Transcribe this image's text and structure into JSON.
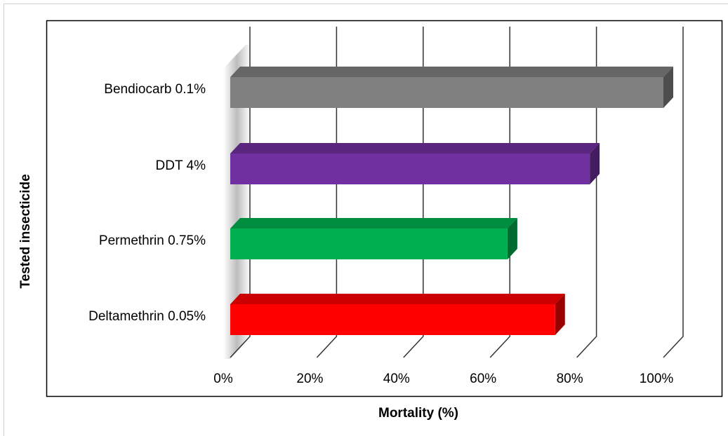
{
  "chart_data": {
    "type": "bar3d-horizontal",
    "x_label": "Mortality (%)",
    "y_label": "Tested insecticide",
    "categories": [
      "Bendiocarb 0.1%",
      "DDT 4%",
      "Permethrin 0.75%",
      "Deltamethrin 0.05%"
    ],
    "values": [
      100,
      83,
      64,
      75
    ],
    "colors": [
      "#808080",
      "#7030a0",
      "#00b050",
      "#ff0000"
    ],
    "xlim": [
      0,
      100
    ],
    "xticks": [
      {
        "value": 0,
        "label": "0%"
      },
      {
        "value": 20,
        "label": "20%"
      },
      {
        "value": 40,
        "label": "40%"
      },
      {
        "value": 60,
        "label": "60%"
      },
      {
        "value": 80,
        "label": "80%"
      },
      {
        "value": 100,
        "label": "100%"
      }
    ],
    "grid": true
  }
}
